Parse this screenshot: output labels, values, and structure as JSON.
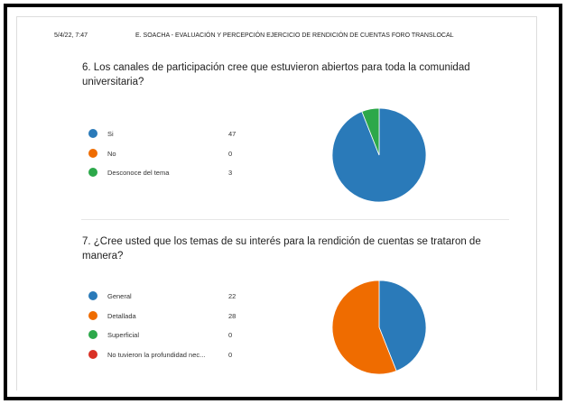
{
  "header": {
    "date": "5/4/22, 7:47",
    "title": "E. SOACHA - EVALUACIÓN Y PERCEPCIÓN EJERCICIO DE RENDICIÓN DE CUENTAS FORO TRANSLOCAL"
  },
  "chart_data": [
    {
      "type": "pie",
      "title": "6. Los canales de participación cree que estuvieron abiertos para toda la comunidad universitaria?",
      "categories": [
        "Si",
        "No",
        "Desconoce del tema"
      ],
      "values": [
        47,
        0,
        3
      ],
      "colors": [
        "#2a7ab9",
        "#ef6c00",
        "#2ca84a"
      ]
    },
    {
      "type": "pie",
      "title": "7. ¿Cree usted que los temas de su interés para la rendición de cuentas se trataron de manera?",
      "categories": [
        "General",
        "Detallada",
        "Superficial",
        "No tuvieron la profundidad nec..."
      ],
      "values": [
        22,
        28,
        0,
        0
      ],
      "colors": [
        "#2a7ab9",
        "#ef6c00",
        "#2ca84a",
        "#d93025"
      ]
    }
  ]
}
